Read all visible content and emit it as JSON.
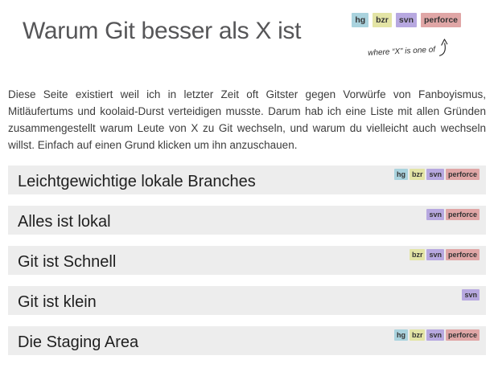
{
  "page": {
    "title": "Warum Git besser als X ist",
    "annotation": "where “X” is one of",
    "intro": "Diese Seite existiert weil ich in letzter Zeit oft Gitster gegen Vorwürfe von Fanboyismus, Mitläufertums und koolaid-Durst verteidigen musste. Darum hab ich eine Liste mit allen Gründen zusammengestellt warum Leute von X zu Git wechseln, und warum du vielleicht auch wechseln willst. Einfach auf einen Grund klicken um ihn anzuschauen."
  },
  "badges": {
    "hg": {
      "label": "hg",
      "bg": "#aad3de"
    },
    "bzr": {
      "label": "bzr",
      "bg": "#e3e4a5"
    },
    "svn": {
      "label": "svn",
      "bg": "#b7a8e0"
    },
    "perforce": {
      "label": "perforce",
      "bg": "#e0a6a6"
    }
  },
  "header_badges": [
    "hg",
    "bzr",
    "svn",
    "perforce"
  ],
  "reasons": [
    {
      "title": "Leichtgewichtige lokale Branches",
      "badges": [
        "hg",
        "bzr",
        "svn",
        "perforce"
      ]
    },
    {
      "title": "Alles ist lokal",
      "badges": [
        "svn",
        "perforce"
      ]
    },
    {
      "title": "Git ist Schnell",
      "badges": [
        "bzr",
        "svn",
        "perforce"
      ]
    },
    {
      "title": "Git ist klein",
      "badges": [
        "svn"
      ]
    },
    {
      "title": "Die Staging Area",
      "badges": [
        "hg",
        "bzr",
        "svn",
        "perforce"
      ]
    }
  ],
  "colors": {
    "row_background": "#ededed",
    "title_gray": "#565658",
    "badge_text": "#333333"
  }
}
